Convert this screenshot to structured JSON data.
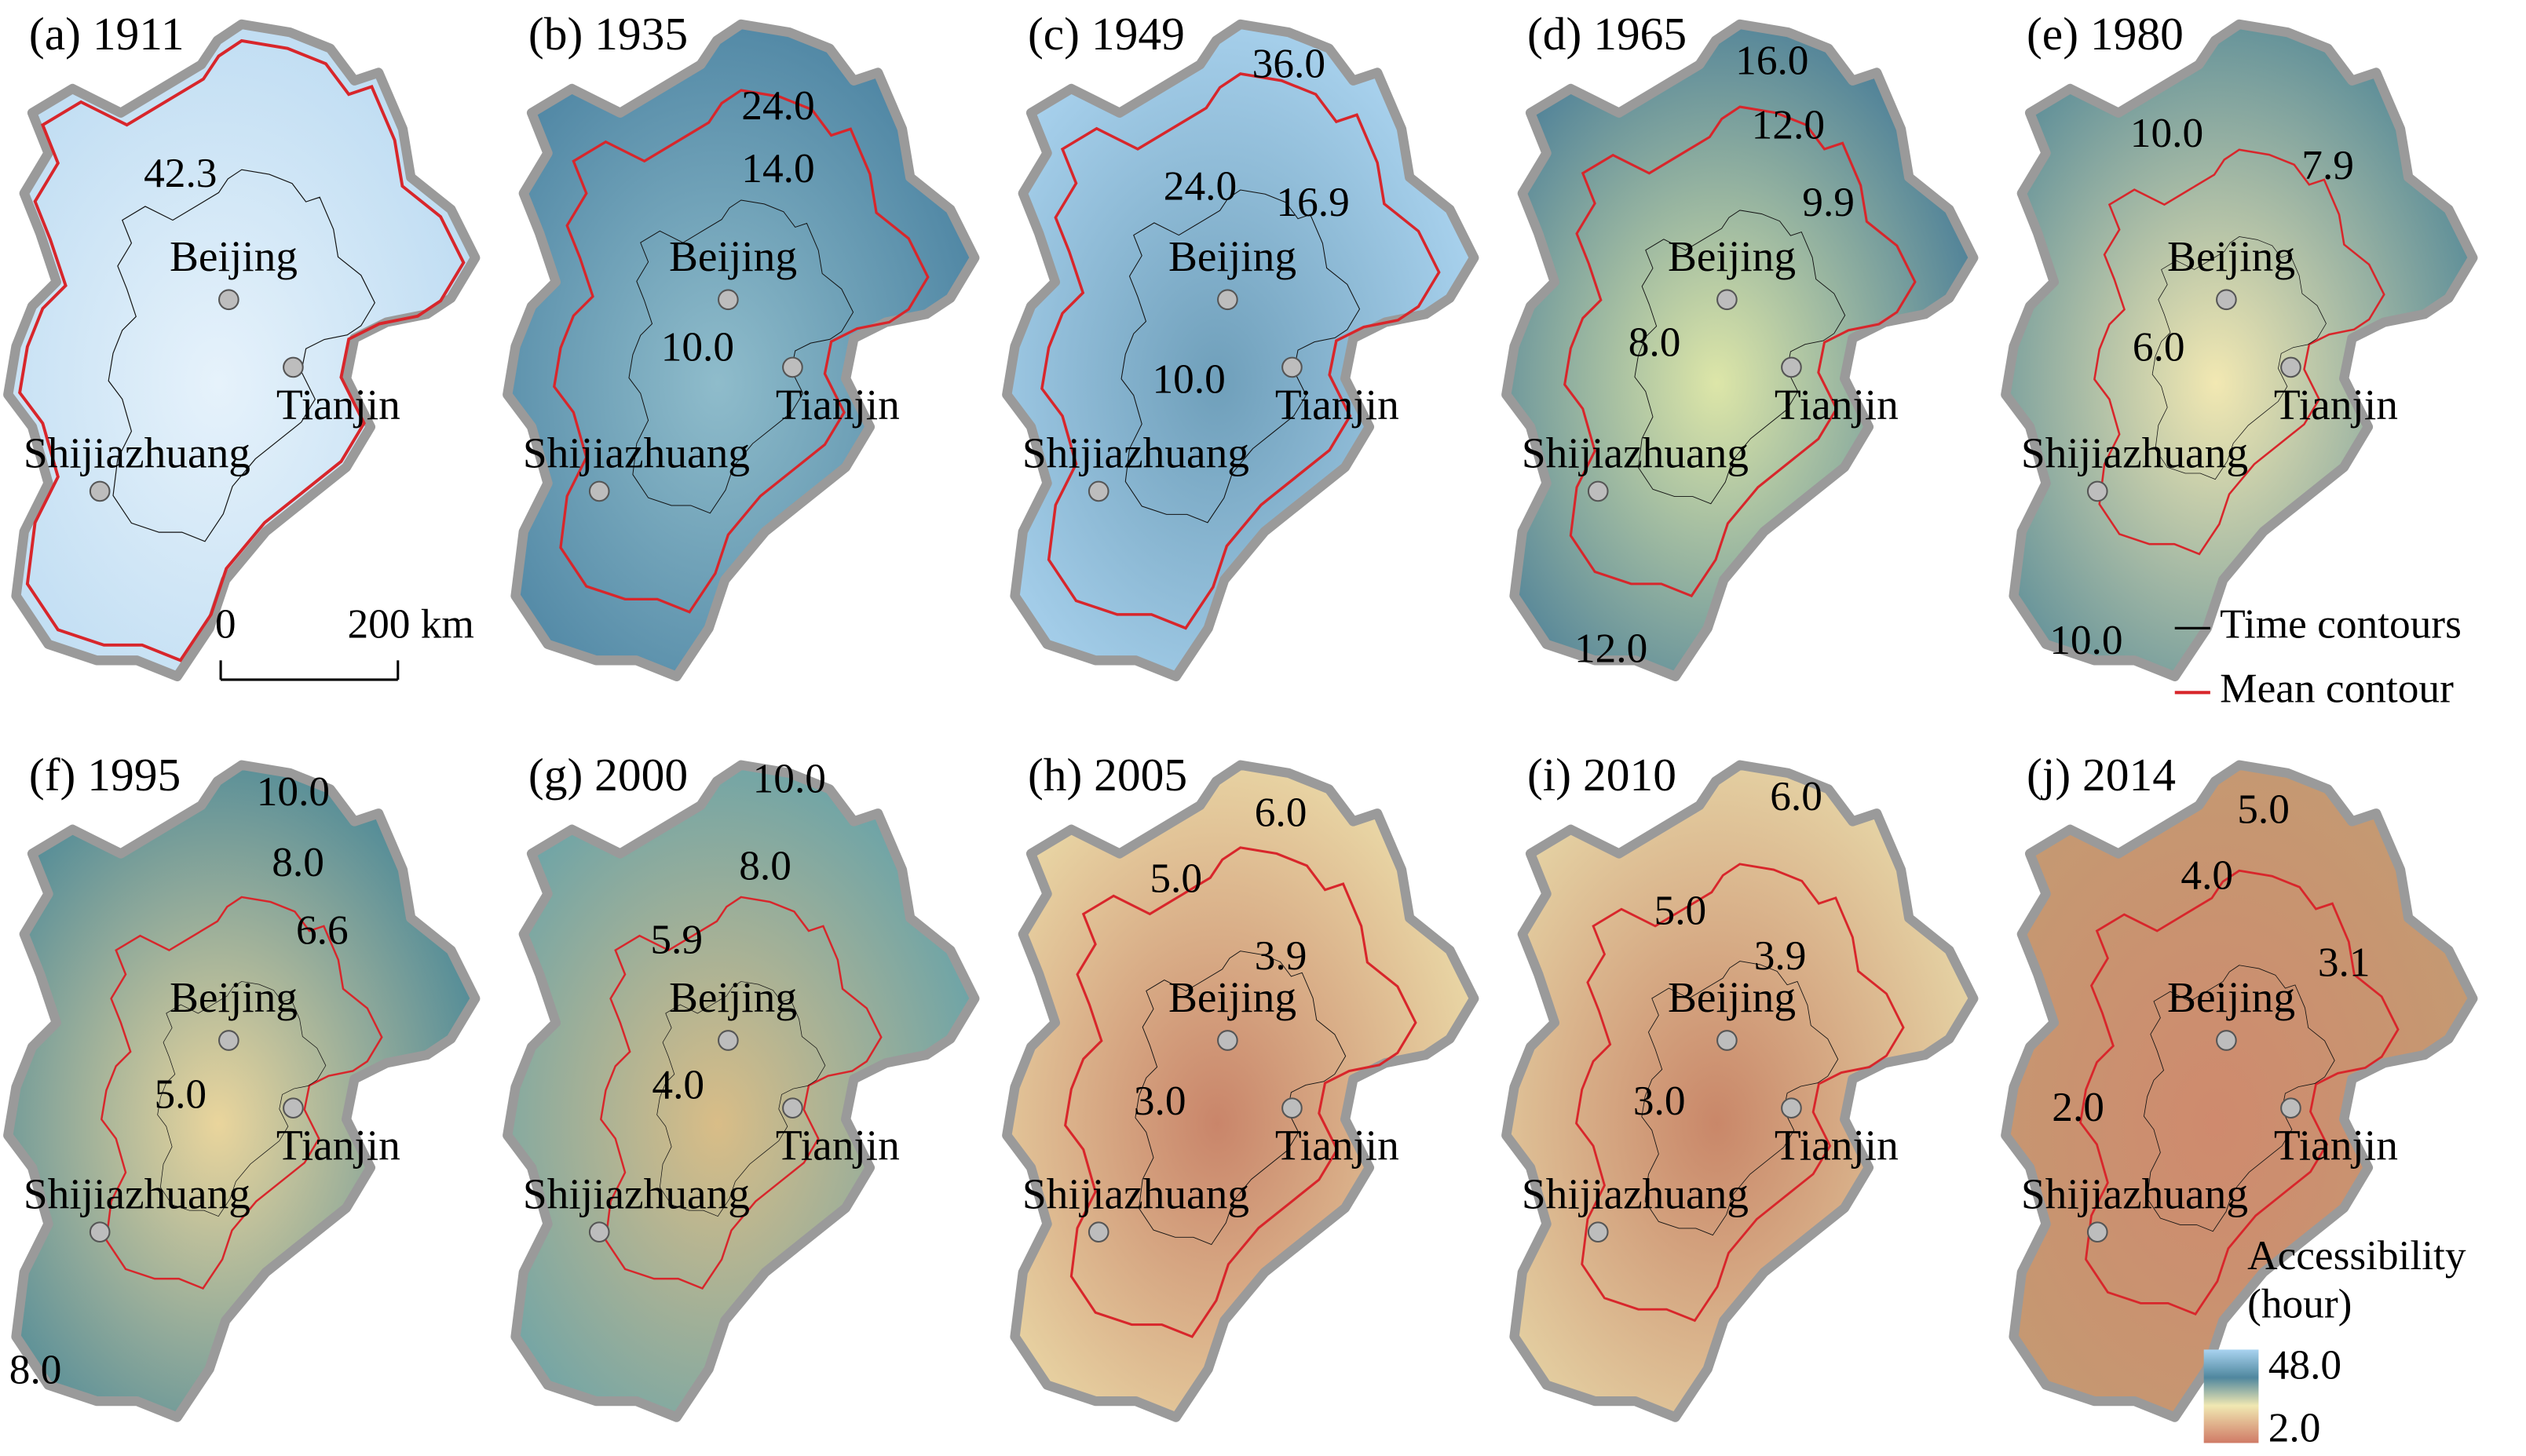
{
  "panels": [
    {
      "label": "(a) 1911",
      "contour_labels": [
        "42.3"
      ]
    },
    {
      "label": "(b) 1935",
      "contour_labels": [
        "24.0",
        "14.0",
        "10.0"
      ]
    },
    {
      "label": "(c) 1949",
      "contour_labels": [
        "36.0",
        "24.0",
        "16.9",
        "10.0"
      ]
    },
    {
      "label": "(d) 1965",
      "contour_labels": [
        "16.0",
        "12.0",
        "9.9",
        "8.0",
        "12.0"
      ]
    },
    {
      "label": "(e) 1980",
      "contour_labels": [
        "10.0",
        "7.9",
        "6.0",
        "10.0"
      ]
    },
    {
      "label": "(f) 1995",
      "contour_labels": [
        "10.0",
        "8.0",
        "6.6",
        "5.0",
        "8.0"
      ]
    },
    {
      "label": "(g) 2000",
      "contour_labels": [
        "10.0",
        "8.0",
        "5.9",
        "4.0"
      ]
    },
    {
      "label": "(h) 2005",
      "contour_labels": [
        "6.0",
        "5.0",
        "3.9",
        "3.0"
      ]
    },
    {
      "label": "(i) 2010",
      "contour_labels": [
        "6.0",
        "5.0",
        "3.9",
        "3.0"
      ]
    },
    {
      "label": "(j) 2014",
      "contour_labels": [
        "5.0",
        "4.0",
        "3.1",
        "2.0"
      ]
    }
  ],
  "cities": [
    "Beijing",
    "Tianjin",
    "Shijiazhuang"
  ],
  "scale_bar": {
    "start": "0",
    "end": "200 km"
  },
  "legend": {
    "time_contours": "Time contours",
    "mean_contour": "Mean contour",
    "title": "Accessibility",
    "unit": "(hour)",
    "max": "48.0",
    "min": "2.0"
  }
}
